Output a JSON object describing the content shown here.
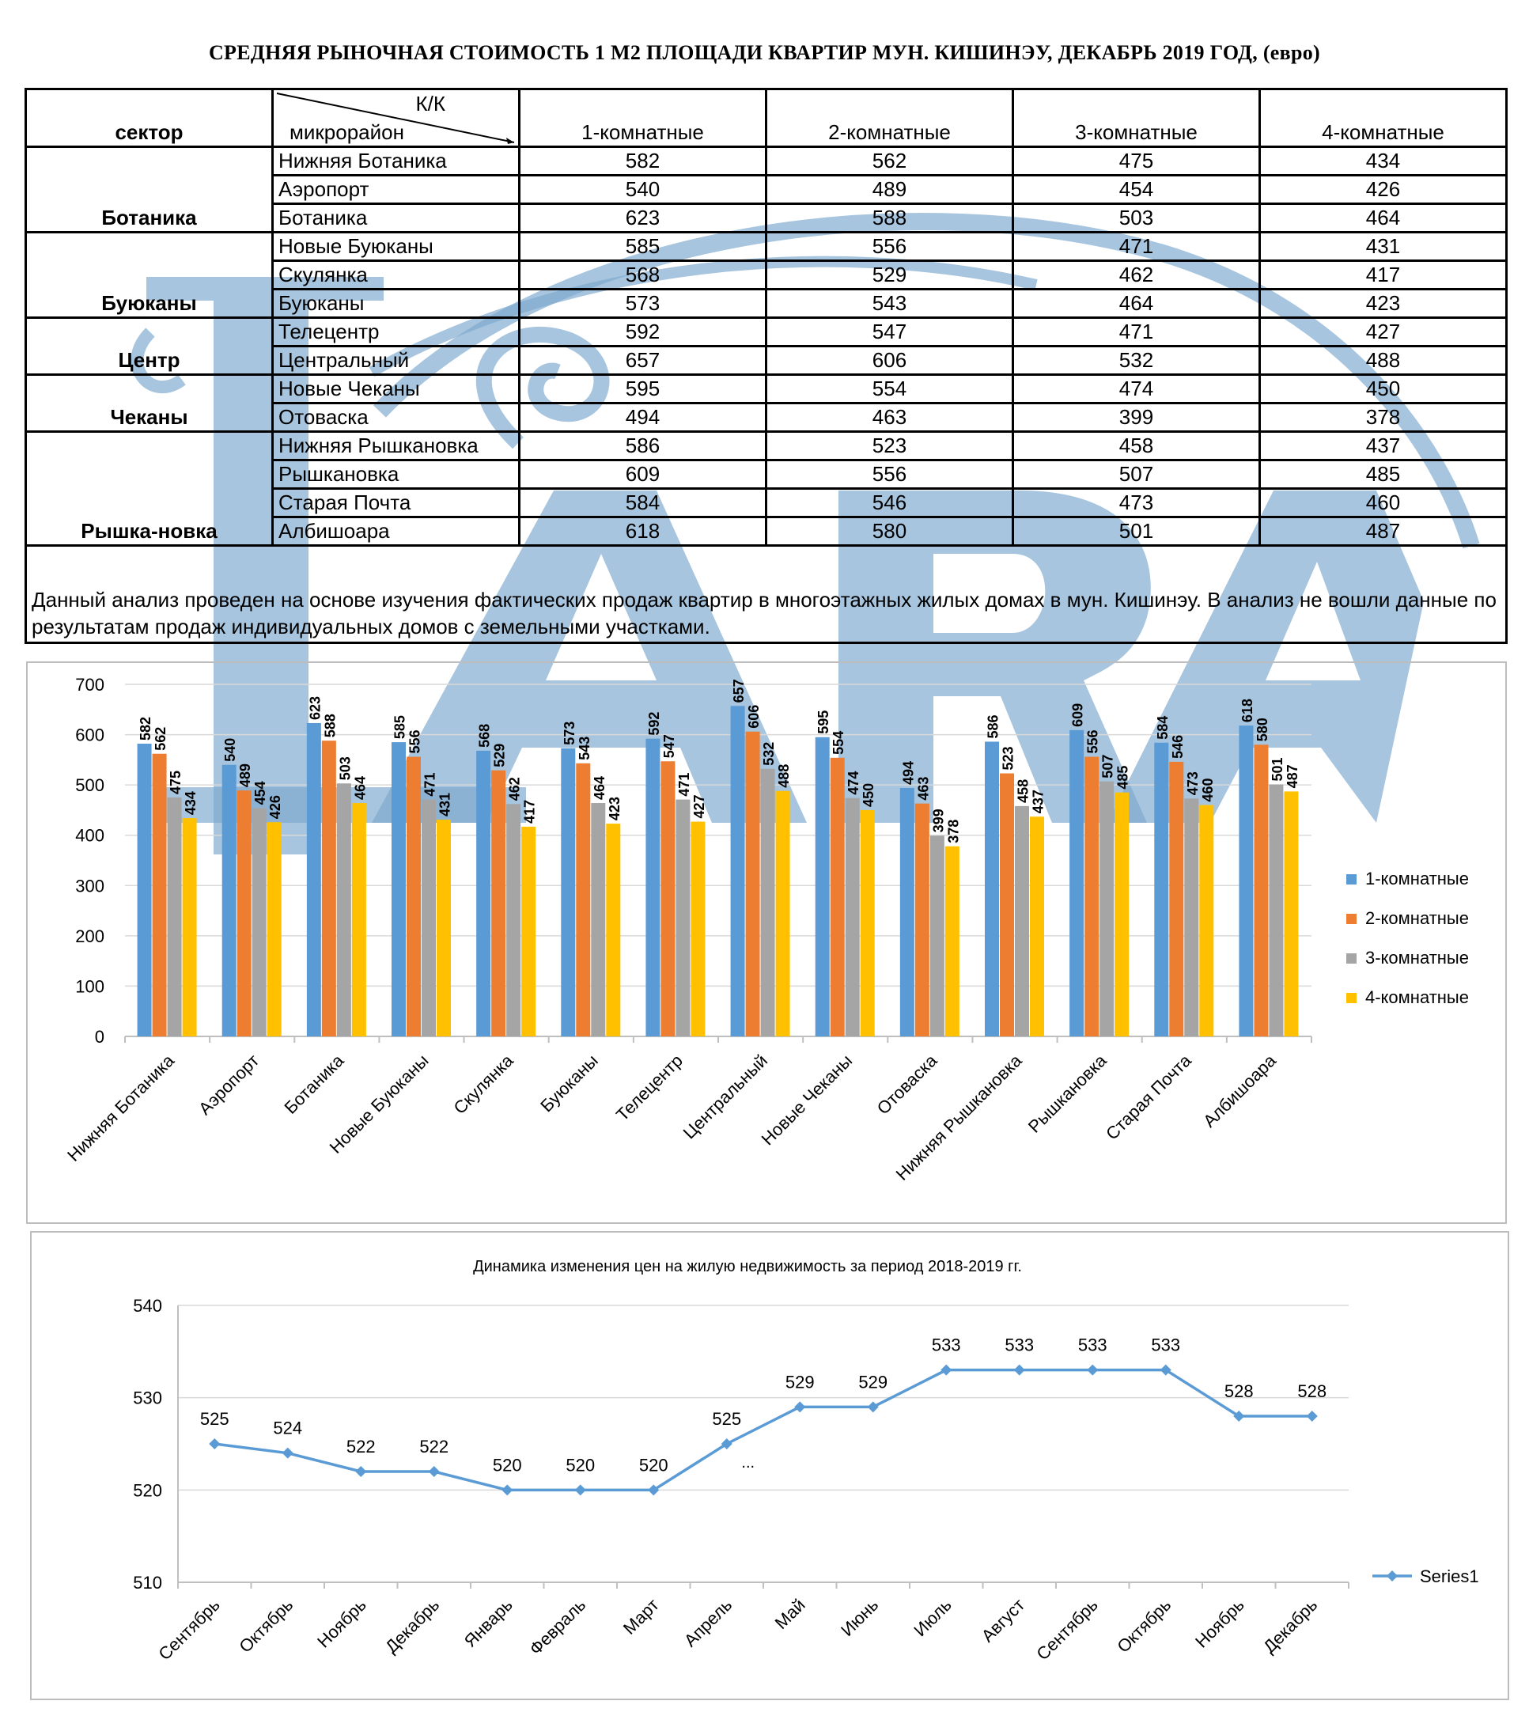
{
  "title": "СРЕДНЯЯ  РЫНОЧНАЯ  СТОИМОСТЬ  1 М2  ПЛОЩАДИ  КВАРТИР МУН.  КИШИНЭУ, ДЕКАБРЬ 2019 ГОД, (евро)",
  "watermark": {
    "letters": "ARA",
    "color": "#7ea9cf"
  },
  "table": {
    "header": {
      "sector": "сектор",
      "kk": "К/К",
      "microdistrict": "микрорайон",
      "columns": [
        "1-комнатные",
        "2-комнатные",
        "3-комнатные",
        "4-комнатные"
      ]
    },
    "sectors": [
      {
        "name": "Ботаника",
        "rows": [
          {
            "district": "Нижняя Ботаника",
            "values": [
              "582",
              "562",
              "475",
              "434"
            ]
          },
          {
            "district": "Аэропорт",
            "values": [
              "540",
              "489",
              "454",
              "426"
            ]
          },
          {
            "district": "Ботаника",
            "values": [
              "623",
              "588",
              "503",
              "464"
            ]
          }
        ]
      },
      {
        "name": "Буюканы",
        "rows": [
          {
            "district": "Новые Буюканы",
            "values": [
              "585",
              "556",
              "471",
              "431"
            ]
          },
          {
            "district": "Скулянка",
            "values": [
              "568",
              "529",
              "462",
              "417"
            ]
          },
          {
            "district": "Буюканы",
            "values": [
              "573",
              "543",
              "464",
              "423"
            ]
          }
        ]
      },
      {
        "name": "Центр",
        "rows": [
          {
            "district": "Телецентр",
            "values": [
              "592",
              "547",
              "471",
              "427"
            ]
          },
          {
            "district": "Центральный",
            "values": [
              "657",
              "606",
              "532",
              "488"
            ]
          }
        ]
      },
      {
        "name": "Чеканы",
        "rows": [
          {
            "district": "Новые Чеканы",
            "values": [
              "595",
              "554",
              "474",
              "450"
            ]
          },
          {
            "district": "Отоваска",
            "values": [
              "494",
              "463",
              "399",
              "378"
            ]
          }
        ]
      },
      {
        "name": "Рышка-новка",
        "rows": [
          {
            "district": "Нижняя Рышкановка",
            "values": [
              "586",
              "523",
              "458",
              "437"
            ]
          },
          {
            "district": "Рышкановка",
            "values": [
              "609",
              "556",
              "507",
              "485"
            ]
          },
          {
            "district": "Старая Почта",
            "values": [
              "584",
              "546",
              "473",
              "460"
            ]
          },
          {
            "district": "Албишоара",
            "values": [
              "618",
              "580",
              "501",
              "487"
            ]
          }
        ]
      }
    ],
    "note": "Данный анализ проведен на основе изучения фактических продаж квартир в многоэтажных жилых домах в мун. Кишинэу. В анализ не вошли данные по результатам  продаж индивидуальных домов с земельными участками."
  },
  "chart_data": [
    {
      "type": "bar",
      "categories": [
        "Нижняя Ботаника",
        "Аэропорт",
        "Ботаника",
        "Новые Буюканы",
        "Скулянка",
        "Буюканы",
        "Телецентр",
        "Центральный",
        "Новые Чеканы",
        "Отоваска",
        "Нижняя Рышкановка",
        "Рышкановка",
        "Старая Почта",
        "Албишоара"
      ],
      "series": [
        {
          "name": "1-комнатные",
          "color": "#5b9bd5",
          "values": [
            582,
            540,
            623,
            585,
            568,
            573,
            592,
            657,
            595,
            494,
            586,
            609,
            584,
            618
          ]
        },
        {
          "name": "2-комнатные",
          "color": "#ed7d31",
          "values": [
            562,
            489,
            588,
            556,
            529,
            543,
            547,
            606,
            554,
            463,
            523,
            556,
            546,
            580
          ]
        },
        {
          "name": "3-комнатные",
          "color": "#a5a5a5",
          "values": [
            475,
            454,
            503,
            471,
            462,
            464,
            471,
            532,
            474,
            399,
            458,
            507,
            473,
            501
          ]
        },
        {
          "name": "4-комнатные",
          "color": "#ffc000",
          "values": [
            434,
            426,
            464,
            431,
            417,
            423,
            427,
            488,
            450,
            378,
            437,
            485,
            460,
            487
          ]
        }
      ],
      "ylim": [
        0,
        700
      ],
      "yticks": [
        0,
        100,
        200,
        300,
        400,
        500,
        600,
        700
      ],
      "grid": true,
      "legend": "right",
      "data_labels": true
    },
    {
      "type": "line",
      "title": "Динамика изменения цен на жилую недвижимость за период 2018-2019 гг.",
      "categories": [
        "Сентябрь",
        "Октябрь",
        "Ноябрь",
        "Декабрь",
        "Январь",
        "Февраль",
        "Март",
        "Апрель",
        "Май",
        "Июнь",
        "Июль",
        "Август",
        "Сентябрь",
        "Октябрь",
        "Ноябрь",
        "Декабрь"
      ],
      "series": [
        {
          "name": "Series1",
          "color": "#5b9bd5",
          "values": [
            525,
            524,
            522,
            522,
            520,
            520,
            520,
            525,
            529,
            529,
            533,
            533,
            533,
            533,
            528,
            528
          ]
        }
      ],
      "ylim": [
        510,
        540
      ],
      "yticks": [
        510,
        520,
        530,
        540
      ],
      "grid": true,
      "legend": "right",
      "data_labels": true,
      "annotation": "..."
    }
  ]
}
